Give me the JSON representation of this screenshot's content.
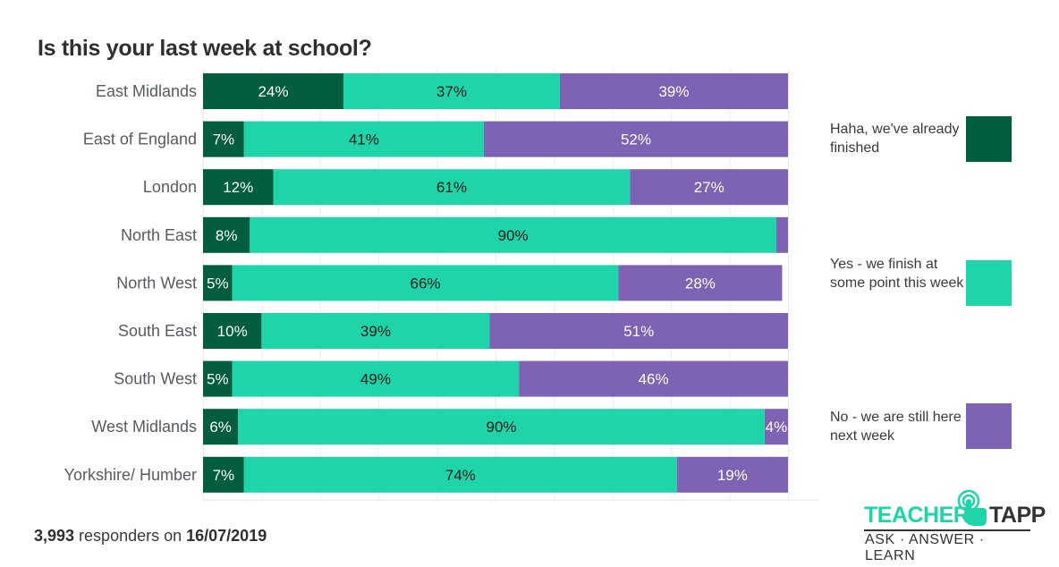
{
  "chart_data": {
    "type": "bar",
    "orientation": "horizontal",
    "stacked": true,
    "title": "Is this your last week at school?",
    "xlabel": "",
    "ylabel": "",
    "xlim": [
      0,
      100
    ],
    "grid": true,
    "legend_position": "right",
    "categories": [
      "East Midlands",
      "East of England",
      "London",
      "North East",
      "North West",
      "South East",
      "South West",
      "West Midlands",
      "Yorkshire/ Humber"
    ],
    "series": [
      {
        "name": "Haha, we've already finished",
        "color": "#005e3f",
        "values": [
          24,
          7,
          12,
          8,
          5,
          10,
          5,
          6,
          7
        ],
        "labels": [
          "24%",
          "7%",
          "12%",
          "8%",
          "5%",
          "10%",
          "5%",
          "6%",
          "7%"
        ],
        "label_color": "#ffffff"
      },
      {
        "name": "Yes - we finish at some point this week",
        "color": "#1fd4a9",
        "values": [
          37,
          41,
          61,
          90,
          66,
          39,
          49,
          90,
          74
        ],
        "labels": [
          "37%",
          "41%",
          "61%",
          "90%",
          "66%",
          "39%",
          "49%",
          "90%",
          "74%"
        ],
        "label_color": "#1a1a1a"
      },
      {
        "name": "No - we are still here next week",
        "color": "#7e62b4",
        "values": [
          39,
          52,
          27,
          2,
          28,
          51,
          46,
          4,
          19
        ],
        "labels": [
          "39%",
          "52%",
          "27%",
          "",
          "28%",
          "51%",
          "46%",
          "4%",
          "19%"
        ],
        "label_color": "#ffffff"
      }
    ]
  },
  "legend": [
    {
      "label": "Haha, we've already finished",
      "color": "#005e3f"
    },
    {
      "label": "Yes - we finish at some point this week",
      "color": "#1fd4a9"
    },
    {
      "label": "No - we are still here next week",
      "color": "#7e62b4"
    }
  ],
  "footer": {
    "count": "3,993",
    "middle": " responders on ",
    "date": "16/07/2019"
  },
  "logo": {
    "word1": "TEACHER",
    "word2": "TAPP",
    "tagline": "ASK · ANSWER · LEARN",
    "accent": "#1fd4a9"
  }
}
